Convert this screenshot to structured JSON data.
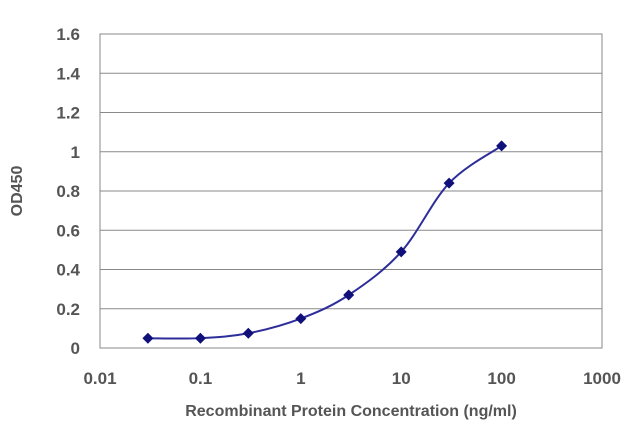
{
  "chart_data": {
    "type": "line",
    "title": "",
    "xlabel": "Recombinant Protein Concentration (ng/ml)",
    "ylabel": "OD450",
    "x_scale": "log",
    "xlim": [
      0.01,
      1000
    ],
    "ylim": [
      0,
      1.6
    ],
    "x_ticks": [
      0.01,
      0.1,
      1,
      10,
      100,
      1000
    ],
    "x_tick_labels": [
      "0.01",
      "0.1",
      "1",
      "10",
      "100",
      "1000"
    ],
    "y_ticks": [
      0,
      0.2,
      0.4,
      0.6,
      0.8,
      1,
      1.2,
      1.4,
      1.6
    ],
    "y_tick_labels": [
      "0",
      "0.2",
      "0.4",
      "0.6",
      "0.8",
      "1",
      "1.2",
      "1.4",
      "1.6"
    ],
    "grid": "horizontal",
    "legend": "none",
    "series": [
      {
        "color": "#2e2e9a",
        "marker_color": "#10107a",
        "x": [
          0.03,
          0.1,
          0.3,
          1,
          3,
          10,
          30,
          100
        ],
        "y": [
          0.05,
          0.05,
          0.075,
          0.15,
          0.27,
          0.49,
          0.84,
          1.03
        ]
      }
    ]
  }
}
